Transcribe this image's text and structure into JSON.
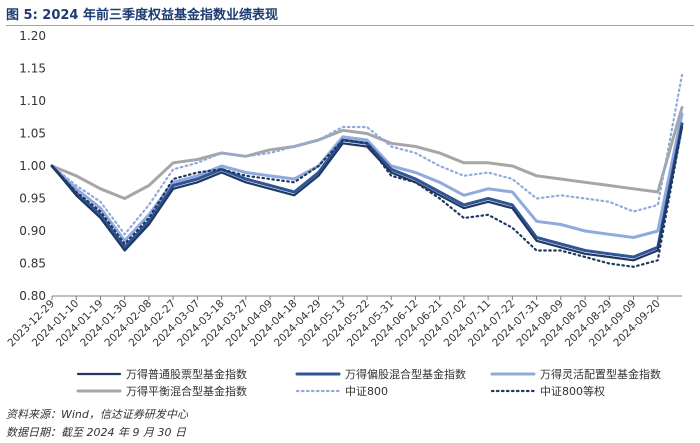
{
  "figure_title": "图 5:  2024 年前三季度权益基金指数业绩表现",
  "source": "资料来源：Wind，信达证券研发中心",
  "date_note": "数据日期：截至 2024 年 9 月 30 日",
  "chart_data": {
    "type": "line",
    "title": "",
    "xlabel": "",
    "ylabel": "",
    "ylim": [
      0.8,
      1.2
    ],
    "yticks": [
      "0.80",
      "0.85",
      "0.90",
      "0.95",
      "1.00",
      "1.05",
      "1.10",
      "1.15",
      "1.20"
    ],
    "grid": false,
    "legend_position": "bottom",
    "x": [
      "2023-12-29",
      "2024-01-10",
      "2024-01-19",
      "2024-01-30",
      "2024-02-08",
      "2024-02-27",
      "2024-03-07",
      "2024-03-18",
      "2024-03-27",
      "2024-04-09",
      "2024-04-18",
      "2024-04-29",
      "2024-05-13",
      "2024-05-22",
      "2024-05-31",
      "2024-06-12",
      "2024-06-21",
      "2024-07-02",
      "2024-07-11",
      "2024-07-22",
      "2024-07-31",
      "2024-08-09",
      "2024-08-20",
      "2024-08-29",
      "2024-09-09",
      "2024-09-20",
      "2024-09-30"
    ],
    "x_tick_labels": [
      "2023-12-29",
      "2024-01-10",
      "2024-01-19",
      "2024-01-30",
      "2024-02-08",
      "2024-02-27",
      "2024-03-07",
      "2024-03-18",
      "2024-03-27",
      "2024-04-09",
      "2024-04-18",
      "2024-04-29",
      "2024-05-13",
      "2024-05-22",
      "2024-05-31",
      "2024-06-12",
      "2024-06-21",
      "2024-07-02",
      "2024-07-11",
      "2024-07-22",
      "2024-07-31",
      "2024-08-09",
      "2024-08-20",
      "2024-08-29",
      "2024-09-09",
      "2024-09-20"
    ],
    "series": [
      {
        "name": "万得普通股票型基金指数",
        "color": "#1f3864",
        "style": "solid",
        "width": 2.2,
        "values": [
          1.0,
          0.955,
          0.92,
          0.87,
          0.91,
          0.965,
          0.975,
          0.99,
          0.975,
          0.965,
          0.955,
          0.985,
          1.035,
          1.03,
          0.99,
          0.975,
          0.955,
          0.935,
          0.945,
          0.935,
          0.885,
          0.875,
          0.865,
          0.86,
          0.855,
          0.87,
          1.06
        ]
      },
      {
        "name": "万得偏股混合型基金指数",
        "color": "#2f5597",
        "style": "solid",
        "width": 3.0,
        "values": [
          1.0,
          0.958,
          0.925,
          0.875,
          0.915,
          0.97,
          0.98,
          0.995,
          0.98,
          0.97,
          0.96,
          0.99,
          1.04,
          1.035,
          0.995,
          0.98,
          0.96,
          0.94,
          0.95,
          0.94,
          0.89,
          0.88,
          0.87,
          0.865,
          0.86,
          0.875,
          1.065
        ]
      },
      {
        "name": "万得灵活配置型基金指数",
        "color": "#8faadc",
        "style": "solid",
        "width": 3.0,
        "values": [
          1.0,
          0.965,
          0.935,
          0.885,
          0.925,
          0.975,
          0.985,
          1.0,
          0.99,
          0.985,
          0.98,
          1.0,
          1.045,
          1.04,
          1.0,
          0.99,
          0.975,
          0.955,
          0.965,
          0.96,
          0.915,
          0.91,
          0.9,
          0.895,
          0.89,
          0.9,
          1.08
        ]
      },
      {
        "name": "万得平衡混合型基金指数",
        "color": "#a6a6a6",
        "style": "solid",
        "width": 3.0,
        "values": [
          1.0,
          0.985,
          0.965,
          0.95,
          0.97,
          1.005,
          1.01,
          1.02,
          1.015,
          1.025,
          1.03,
          1.04,
          1.055,
          1.05,
          1.035,
          1.03,
          1.02,
          1.005,
          1.005,
          1.0,
          0.985,
          0.98,
          0.975,
          0.97,
          0.965,
          0.96,
          1.09
        ]
      },
      {
        "name": "中证800",
        "color": "#8faadc",
        "style": "dotted",
        "width": 2.2,
        "values": [
          1.0,
          0.97,
          0.945,
          0.895,
          0.94,
          0.995,
          1.005,
          1.02,
          1.015,
          1.02,
          1.03,
          1.04,
          1.06,
          1.06,
          1.03,
          1.02,
          1.0,
          0.985,
          0.99,
          0.98,
          0.95,
          0.955,
          0.95,
          0.945,
          0.93,
          0.94,
          1.14
        ]
      },
      {
        "name": "中证800等权",
        "color": "#1f3864",
        "style": "dotted",
        "width": 2.2,
        "values": [
          1.0,
          0.96,
          0.93,
          0.88,
          0.92,
          0.98,
          0.99,
          0.995,
          0.985,
          0.98,
          0.975,
          1.0,
          1.04,
          1.035,
          0.985,
          0.975,
          0.95,
          0.92,
          0.925,
          0.905,
          0.87,
          0.87,
          0.86,
          0.85,
          0.845,
          0.855,
          1.06
        ]
      }
    ]
  }
}
